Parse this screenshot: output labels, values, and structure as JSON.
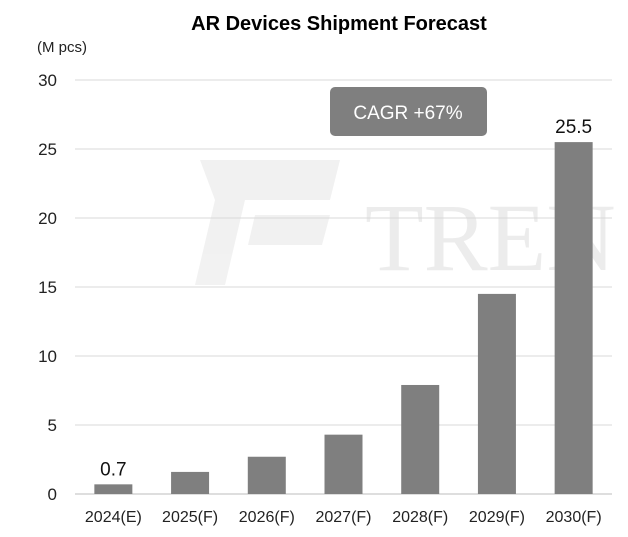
{
  "chart_data": {
    "type": "bar",
    "title": "AR Devices Shipment Forecast",
    "unit_label": "(M pcs)",
    "categories": [
      "2024(E)",
      "2025(F)",
      "2026(F)",
      "2027(F)",
      "2028(F)",
      "2029(F)",
      "2030(F)"
    ],
    "values": [
      0.7,
      1.6,
      2.7,
      4.3,
      7.9,
      14.5,
      25.5
    ],
    "data_labels": [
      {
        "category": "2024(E)",
        "text": "0.7"
      },
      {
        "category": "2030(F)",
        "text": "25.5"
      }
    ],
    "annotation": "CAGR +67%",
    "y_ticks": [
      "0",
      "5",
      "10",
      "15",
      "20",
      "25",
      "30"
    ],
    "ylim": [
      0,
      30
    ],
    "grid": true,
    "legend": "none",
    "bar_color": "#7f7f7f",
    "annotation_box_color": "#7f7f7f",
    "watermark": "TREN"
  }
}
